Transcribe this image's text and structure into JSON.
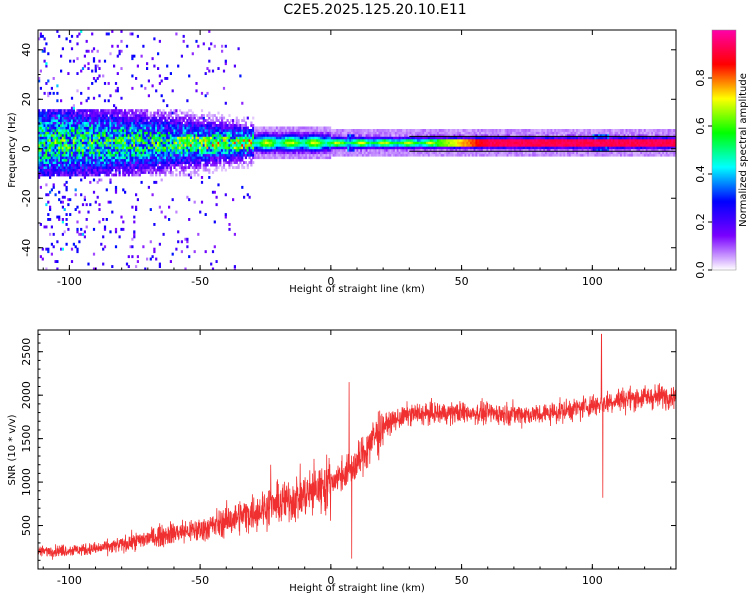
{
  "title": "C2E5.2025.125.20.10.E11",
  "chart_data": [
    {
      "type": "heatmap",
      "xlabel": "Height of straight line (km)",
      "ylabel": "Frequency (Hz)",
      "xlim": [
        -112,
        132
      ],
      "ylim": [
        -49,
        48
      ],
      "xticks": [
        -100,
        -50,
        0,
        50,
        100
      ],
      "yticks": [
        -40,
        -20,
        0,
        20,
        40
      ],
      "colorbar": {
        "label": "Normalized spectral amplitude",
        "range": [
          0,
          1
        ],
        "ticks": [
          "0.0",
          "0.2",
          "0.4",
          "0.6",
          "0.8"
        ],
        "colors": [
          "#ffffff",
          "#7a00ff",
          "#0000ff",
          "#00ffff",
          "#00ff00",
          "#ffff00",
          "#ff0000",
          "#ff00aa"
        ]
      },
      "signal_band": {
        "center_hz": 2,
        "guide_lines_hz": [
          -1,
          5
        ],
        "noise_extent_km": -30
      }
    },
    {
      "type": "line",
      "xlabel": "Height of straight line (km)",
      "ylabel": "SNR (10 * v/v)",
      "xlim": [
        -112,
        132
      ],
      "ylim": [
        0,
        2750
      ],
      "xticks": [
        -100,
        -50,
        0,
        50,
        100
      ],
      "yticks": [
        500,
        1000,
        1500,
        2000,
        2500
      ],
      "color": "#f03030",
      "trend_x": [
        -112,
        -90,
        -80,
        -70,
        -60,
        -50,
        -40,
        -30,
        -25,
        -20,
        -10,
        0,
        10,
        15,
        20,
        30,
        50,
        80,
        95,
        110,
        132
      ],
      "trend_y": [
        200,
        230,
        280,
        350,
        420,
        450,
        550,
        650,
        700,
        750,
        850,
        1000,
        1200,
        1450,
        1650,
        1780,
        1800,
        1780,
        1850,
        1950,
        2000
      ],
      "spikes": [
        {
          "x": -23,
          "y": 1200
        },
        {
          "x": 7,
          "y": 2150
        },
        {
          "x": 8,
          "y": 120
        },
        {
          "x": 103.5,
          "y": 2700
        },
        {
          "x": 104,
          "y": 820
        }
      ]
    }
  ]
}
